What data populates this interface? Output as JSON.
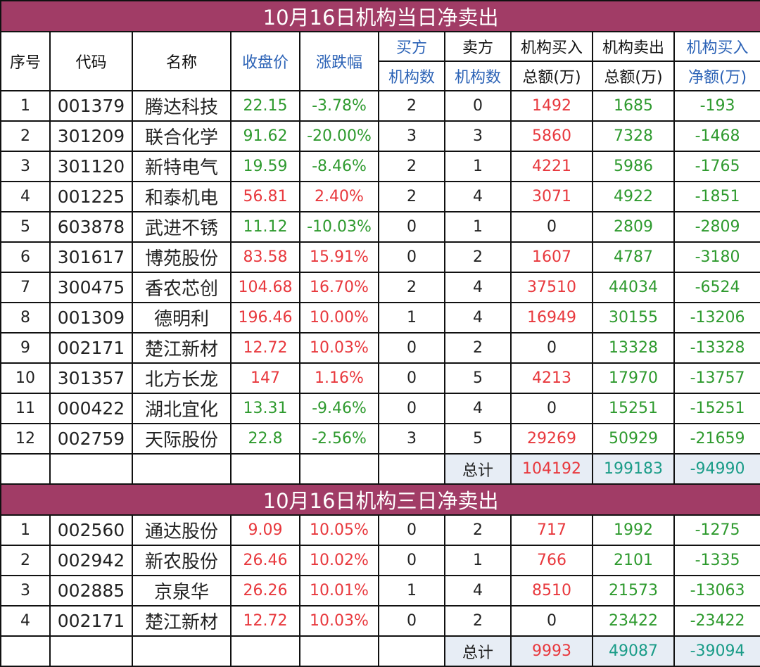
{
  "section1": {
    "title": "10月16日机构当日净卖出",
    "headers": {
      "seq": "序号",
      "code": "代码",
      "name": "名称",
      "close": "收盘价",
      "change": "涨跌幅",
      "buy_top": "买方",
      "buy_bottom": "机构数",
      "sell_top": "卖方",
      "sell_bottom": "机构数",
      "inst_buy_top": "机构买入",
      "inst_buy_bottom": "总额(万)",
      "inst_sell_top": "机构卖出",
      "inst_sell_bottom": "总额(万)",
      "net_top": "机构买入",
      "net_bottom": "净额(万)"
    },
    "rows": [
      {
        "seq": "1",
        "code": "001379",
        "name": "腾达科技",
        "close": "22.15",
        "change": "-3.78%",
        "buyers": "2",
        "sellers": "0",
        "buy_amt": "1492",
        "sell_amt": "1685",
        "net": "-193",
        "dir": "down"
      },
      {
        "seq": "2",
        "code": "301209",
        "name": "联合化学",
        "close": "91.62",
        "change": "-20.00%",
        "buyers": "3",
        "sellers": "3",
        "buy_amt": "5860",
        "sell_amt": "7328",
        "net": "-1468",
        "dir": "down"
      },
      {
        "seq": "3",
        "code": "301120",
        "name": "新特电气",
        "close": "19.59",
        "change": "-8.46%",
        "buyers": "2",
        "sellers": "1",
        "buy_amt": "4221",
        "sell_amt": "5986",
        "net": "-1765",
        "dir": "down"
      },
      {
        "seq": "4",
        "code": "001225",
        "name": "和泰机电",
        "close": "56.81",
        "change": "2.40%",
        "buyers": "2",
        "sellers": "4",
        "buy_amt": "3071",
        "sell_amt": "4922",
        "net": "-1851",
        "dir": "up"
      },
      {
        "seq": "5",
        "code": "603878",
        "name": "武进不锈",
        "close": "11.12",
        "change": "-10.03%",
        "buyers": "0",
        "sellers": "1",
        "buy_amt": "0",
        "sell_amt": "2809",
        "net": "-2809",
        "dir": "down"
      },
      {
        "seq": "6",
        "code": "301617",
        "name": "博苑股份",
        "close": "83.58",
        "change": "15.91%",
        "buyers": "0",
        "sellers": "2",
        "buy_amt": "1607",
        "sell_amt": "4787",
        "net": "-3180",
        "dir": "up"
      },
      {
        "seq": "7",
        "code": "300475",
        "name": "香农芯创",
        "close": "104.68",
        "change": "16.70%",
        "buyers": "2",
        "sellers": "4",
        "buy_amt": "37510",
        "sell_amt": "44034",
        "net": "-6524",
        "dir": "up"
      },
      {
        "seq": "8",
        "code": "001309",
        "name": "德明利",
        "close": "196.46",
        "change": "10.00%",
        "buyers": "1",
        "sellers": "4",
        "buy_amt": "16949",
        "sell_amt": "30155",
        "net": "-13206",
        "dir": "up"
      },
      {
        "seq": "9",
        "code": "002171",
        "name": "楚江新材",
        "close": "12.72",
        "change": "10.03%",
        "buyers": "0",
        "sellers": "2",
        "buy_amt": "0",
        "sell_amt": "13328",
        "net": "-13328",
        "dir": "up"
      },
      {
        "seq": "10",
        "code": "301357",
        "name": "北方长龙",
        "close": "147",
        "change": "1.16%",
        "buyers": "0",
        "sellers": "5",
        "buy_amt": "4213",
        "sell_amt": "17970",
        "net": "-13757",
        "dir": "up"
      },
      {
        "seq": "11",
        "code": "000422",
        "name": "湖北宜化",
        "close": "13.31",
        "change": "-9.46%",
        "buyers": "0",
        "sellers": "4",
        "buy_amt": "0",
        "sell_amt": "15251",
        "net": "-15251",
        "dir": "down"
      },
      {
        "seq": "12",
        "code": "002759",
        "name": "天际股份",
        "close": "22.8",
        "change": "-2.56%",
        "buyers": "3",
        "sellers": "5",
        "buy_amt": "29269",
        "sell_amt": "50929",
        "net": "-21659",
        "dir": "down"
      }
    ],
    "total": {
      "label": "总计",
      "buy_amt": "104192",
      "sell_amt": "199183",
      "net": "-94990"
    }
  },
  "section2": {
    "title": "10月16日机构三日净卖出",
    "rows": [
      {
        "seq": "1",
        "code": "002560",
        "name": "通达股份",
        "close": "9.09",
        "change": "10.05%",
        "buyers": "0",
        "sellers": "2",
        "buy_amt": "717",
        "sell_amt": "1992",
        "net": "-1275",
        "dir": "up"
      },
      {
        "seq": "2",
        "code": "002942",
        "name": "新农股份",
        "close": "26.46",
        "change": "10.02%",
        "buyers": "0",
        "sellers": "1",
        "buy_amt": "766",
        "sell_amt": "2101",
        "net": "-1335",
        "dir": "up"
      },
      {
        "seq": "3",
        "code": "002885",
        "name": "京泉华",
        "close": "26.26",
        "change": "10.01%",
        "buyers": "1",
        "sellers": "4",
        "buy_amt": "8510",
        "sell_amt": "21573",
        "net": "-13063",
        "dir": "up"
      },
      {
        "seq": "4",
        "code": "002171",
        "name": "楚江新材",
        "close": "12.72",
        "change": "10.03%",
        "buyers": "0",
        "sellers": "2",
        "buy_amt": "0",
        "sell_amt": "23422",
        "net": "-23422",
        "dir": "up"
      }
    ],
    "total": {
      "label": "总计",
      "buy_amt": "9993",
      "sell_amt": "49087",
      "net": "-39094"
    }
  },
  "colors": {
    "title_bg": "#a13c66",
    "up": "#e8383d",
    "down": "#2e9a2e",
    "header_blue": "#2b62b6",
    "total_bg": "#e7edf5"
  }
}
